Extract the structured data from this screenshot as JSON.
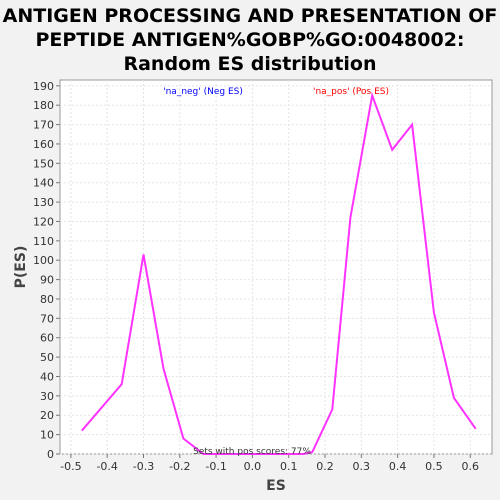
{
  "chart_data": {
    "type": "line",
    "title_lines": [
      "ANTIGEN PROCESSING AND PRESENTATION OF",
      "PEPTIDE ANTIGEN%GOBP%GO:0048002:",
      "Random ES distribution"
    ],
    "xlabel": "ES",
    "ylabel": "P(ES)",
    "xlim": [
      -0.53,
      0.66
    ],
    "ylim": [
      0,
      193
    ],
    "xticks": [
      -0.5,
      -0.4,
      -0.3,
      -0.2,
      -0.1,
      0.0,
      0.1,
      0.2,
      0.3,
      0.4,
      0.5,
      0.6
    ],
    "yticks": [
      0,
      10,
      20,
      30,
      40,
      50,
      60,
      70,
      80,
      90,
      100,
      110,
      120,
      130,
      140,
      150,
      160,
      170,
      180,
      190
    ],
    "grid": true,
    "legend": [
      {
        "label": "'na_neg' (Neg ES)",
        "color": "#0000ff"
      },
      {
        "label": "'na_pos' (Pos ES)",
        "color": "#ff0000"
      }
    ],
    "annotation": "Sets with pos scores: 77%",
    "series": [
      {
        "color": "#ff33ff",
        "x": [
          -0.47,
          -0.36,
          -0.3,
          -0.245,
          -0.19,
          -0.135,
          -0.08,
          -0.025,
          0.03,
          0.085,
          0.14,
          0.165,
          0.22,
          0.27,
          0.33,
          0.385,
          0.44,
          0.5,
          0.555,
          0.615
        ],
        "y": [
          12,
          36,
          103,
          44,
          8,
          0,
          0,
          0,
          0,
          0,
          0,
          1,
          23,
          122,
          185,
          157,
          170,
          73,
          29,
          13
        ]
      }
    ]
  }
}
